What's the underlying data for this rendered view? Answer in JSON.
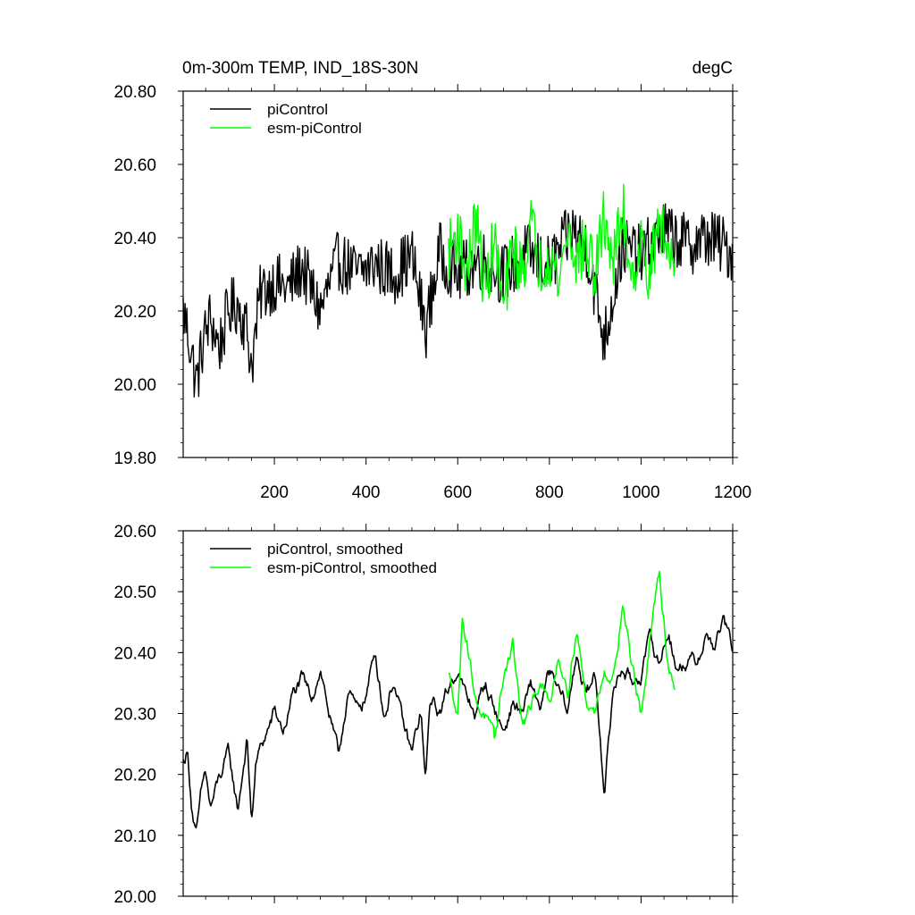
{
  "chart_data": [
    {
      "type": "line",
      "title": "0m-300m TEMP, IND_18S-30N",
      "units": "degC",
      "xlabel": "",
      "ylabel": "",
      "xlim": [
        1,
        1200
      ],
      "ylim": [
        19.8,
        20.8
      ],
      "x_ticks": [
        200,
        400,
        600,
        800,
        1000,
        1200
      ],
      "x_tick_labels": [
        "200",
        "400",
        "600",
        "800",
        "1000",
        "1200"
      ],
      "y_ticks": [
        19.8,
        20.0,
        20.2,
        20.4,
        20.6,
        20.8
      ],
      "y_tick_labels": [
        "19.80",
        "20.00",
        "20.20",
        "20.40",
        "20.60",
        "20.80"
      ],
      "grid": false,
      "legend_position": "top-left",
      "series": [
        {
          "name": "piControl",
          "color": "#000000",
          "x": [
            1,
            10,
            20,
            30,
            45,
            60,
            80,
            100,
            120,
            140,
            150,
            170,
            200,
            230,
            260,
            300,
            340,
            380,
            420,
            460,
            500,
            530,
            560,
            600,
            650,
            700,
            750,
            800,
            850,
            880,
            920,
            960,
            1000,
            1050,
            1100,
            1150,
            1200
          ],
          "values": [
            20.2,
            20.15,
            20.08,
            20.0,
            20.12,
            20.18,
            20.1,
            20.2,
            20.22,
            20.15,
            20.05,
            20.25,
            20.28,
            20.26,
            20.32,
            20.2,
            20.34,
            20.3,
            20.33,
            20.3,
            20.35,
            20.15,
            20.36,
            20.3,
            20.34,
            20.3,
            20.36,
            20.32,
            20.42,
            20.38,
            20.12,
            20.38,
            20.35,
            20.42,
            20.38,
            20.4,
            20.36
          ]
        },
        {
          "name": "esm-piControl",
          "color": "#00ff00",
          "x": [
            580,
            600,
            620,
            640,
            660,
            680,
            700,
            720,
            740,
            760,
            780,
            800,
            820,
            840,
            860,
            880,
            900,
            920,
            940,
            960,
            980,
            1000,
            1020,
            1040,
            1060,
            1075
          ],
          "values": [
            20.36,
            20.42,
            20.3,
            20.45,
            20.25,
            20.4,
            20.2,
            20.38,
            20.3,
            20.44,
            20.32,
            20.36,
            20.28,
            20.42,
            20.34,
            20.38,
            20.3,
            20.46,
            20.33,
            20.48,
            20.3,
            20.38,
            20.3,
            20.45,
            20.35,
            20.38
          ]
        }
      ]
    },
    {
      "type": "line",
      "title": "",
      "xlabel": "",
      "ylabel": "",
      "xlim": [
        1,
        1200
      ],
      "ylim": [
        20.0,
        20.6
      ],
      "x_ticks": [
        200,
        400,
        600,
        800,
        1000,
        1200
      ],
      "x_tick_labels": [],
      "y_ticks": [
        20.0,
        20.1,
        20.2,
        20.3,
        20.4,
        20.5,
        20.6
      ],
      "y_tick_labels": [
        "20.00",
        "20.10",
        "20.20",
        "20.30",
        "20.40",
        "20.50",
        "20.60"
      ],
      "grid": false,
      "legend_position": "top-left",
      "series": [
        {
          "name": "piControl, smoothed",
          "color": "#000000",
          "x": [
            1,
            10,
            20,
            30,
            40,
            50,
            60,
            80,
            100,
            120,
            140,
            150,
            160,
            180,
            200,
            220,
            240,
            260,
            280,
            300,
            320,
            340,
            360,
            380,
            400,
            420,
            440,
            460,
            480,
            500,
            520,
            530,
            540,
            560,
            580,
            600,
            620,
            640,
            660,
            680,
            700,
            720,
            740,
            760,
            780,
            800,
            820,
            840,
            860,
            880,
            900,
            920,
            940,
            960,
            980,
            1000,
            1020,
            1040,
            1060,
            1080,
            1100,
            1120,
            1140,
            1160,
            1180,
            1200
          ],
          "values": [
            20.22,
            20.24,
            20.15,
            20.1,
            20.16,
            20.2,
            20.14,
            20.19,
            20.23,
            20.14,
            20.26,
            20.12,
            20.22,
            20.26,
            20.3,
            20.27,
            20.33,
            20.35,
            20.32,
            20.38,
            20.3,
            20.22,
            20.34,
            20.3,
            20.33,
            20.4,
            20.3,
            20.36,
            20.28,
            20.23,
            20.3,
            20.18,
            20.32,
            20.3,
            20.34,
            20.38,
            20.32,
            20.3,
            20.35,
            20.31,
            20.27,
            20.32,
            20.3,
            20.34,
            20.31,
            20.36,
            20.33,
            20.3,
            20.4,
            20.33,
            20.36,
            20.18,
            20.34,
            20.38,
            20.35,
            20.37,
            20.42,
            20.38,
            20.44,
            20.37,
            20.39,
            20.38,
            20.43,
            20.41,
            20.45,
            20.4
          ]
        },
        {
          "name": "esm-piControl, smoothed",
          "color": "#00ff00",
          "x": [
            580,
            590,
            600,
            610,
            620,
            640,
            660,
            680,
            700,
            720,
            740,
            760,
            780,
            800,
            820,
            840,
            860,
            880,
            900,
            920,
            940,
            960,
            980,
            1000,
            1020,
            1040,
            1060,
            1075
          ],
          "values": [
            20.36,
            20.34,
            20.3,
            20.46,
            20.43,
            20.32,
            20.3,
            20.24,
            20.36,
            20.42,
            20.28,
            20.3,
            20.36,
            20.31,
            20.4,
            20.35,
            20.45,
            20.32,
            20.3,
            20.38,
            20.36,
            20.49,
            20.38,
            20.3,
            20.42,
            20.52,
            20.38,
            20.35
          ]
        }
      ]
    }
  ]
}
